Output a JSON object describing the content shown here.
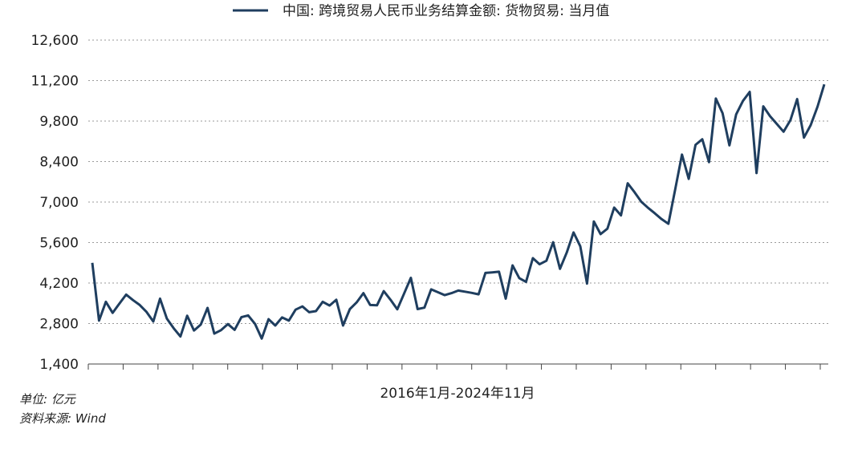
{
  "chart_data": {
    "type": "line",
    "legend": "中国: 跨境贸易人民币业务结算金额: 货物贸易: 当月值",
    "xlabel": "2016年1月-2024年11月",
    "ylim": [
      1400,
      12600
    ],
    "yticks": [
      "1,400",
      "2,800",
      "4,200",
      "5,600",
      "7,000",
      "8,400",
      "9,800",
      "11,200",
      "12,600"
    ],
    "ytick_values": [
      1400,
      2800,
      4200,
      5600,
      7000,
      8400,
      9800,
      11200,
      12600
    ],
    "grid": true,
    "color": "#1f3e5f",
    "series": [
      {
        "values": [
          4900,
          2900,
          3550,
          3170,
          3490,
          3800,
          3610,
          3440,
          3200,
          2870,
          3660,
          2970,
          2640,
          2350,
          3070,
          2560,
          2760,
          3340,
          2450,
          2570,
          2780,
          2580,
          3020,
          3080,
          2790,
          2280,
          2950,
          2730,
          3010,
          2900,
          3280,
          3390,
          3190,
          3230,
          3550,
          3420,
          3620,
          2730,
          3300,
          3530,
          3850,
          3440,
          3430,
          3920,
          3620,
          3290,
          3830,
          4380,
          3300,
          3350,
          3980,
          3880,
          3780,
          3850,
          3940,
          3900,
          3860,
          3810,
          4550,
          4570,
          4590,
          3660,
          4810,
          4370,
          4240,
          5060,
          4850,
          4970,
          5610,
          4690,
          5250,
          5950,
          5470,
          4180,
          6330,
          5890,
          6080,
          6810,
          6540,
          7650,
          7340,
          7010,
          6800,
          6610,
          6410,
          6250,
          7430,
          8640,
          7800,
          8980,
          9170,
          8380,
          10580,
          10070,
          8960,
          10030,
          10500,
          10810,
          8000,
          10310,
          9970,
          9700,
          9430,
          9830,
          10560,
          9230,
          9660,
          10300,
          11070
        ]
      }
    ]
  },
  "notes": {
    "unit": "单位: 亿元",
    "source": "资料来源: Wind"
  }
}
